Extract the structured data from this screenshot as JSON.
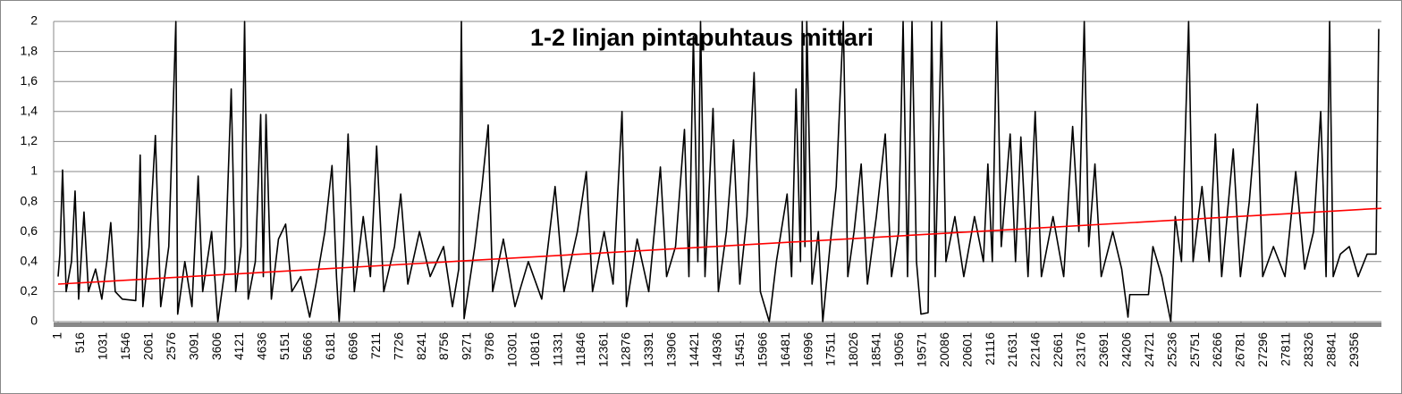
{
  "chart_data": {
    "type": "line",
    "title": "1-2 linjan pintapuhtaus mittari",
    "xlim": [
      -100,
      29960
    ],
    "ylim": [
      0,
      2
    ],
    "xticks": [
      1,
      516,
      1031,
      1546,
      2061,
      2576,
      3091,
      3606,
      4121,
      4636,
      5151,
      5666,
      6181,
      6696,
      7211,
      7726,
      8241,
      8756,
      9271,
      9786,
      10301,
      10816,
      11331,
      11846,
      12361,
      12876,
      13391,
      13906,
      14421,
      14936,
      15451,
      15966,
      16481,
      16996,
      17511,
      18026,
      18541,
      19056,
      19571,
      20086,
      20601,
      21116,
      21631,
      22146,
      22661,
      23176,
      23691,
      24206,
      24721,
      25236,
      25751,
      26266,
      26781,
      27296,
      27811,
      28326,
      28841,
      29356
    ],
    "yticks": [
      0,
      {
        "value": 0.2,
        "label": "0,2"
      },
      {
        "value": 0.4,
        "label": "0,4"
      },
      {
        "value": 0.6,
        "label": "0,6"
      },
      {
        "value": 0.8,
        "label": "0,8"
      },
      1,
      {
        "value": 1.2,
        "label": "1,2"
      },
      {
        "value": 1.4,
        "label": "1,4"
      },
      {
        "value": 1.6,
        "label": "1,6"
      },
      {
        "value": 1.8,
        "label": "1,8"
      },
      2
    ],
    "grid": true,
    "series": [
      {
        "color": "#000000",
        "x": [
          1,
          41,
          102,
          183,
          304,
          385,
          466,
          587,
          688,
          849,
          991,
          1112,
          1193,
          1294,
          1455,
          1758,
          1819,
          1859,
          1920,
          2061,
          2203,
          2324,
          2506,
          2667,
          2708,
          2870,
          3031,
          3172,
          3274,
          3476,
          3617,
          3778,
          3920,
          4021,
          4142,
          4223,
          4304,
          4466,
          4587,
          4647,
          4708,
          4829,
          4990,
          5152,
          5293,
          5495,
          5697,
          5839,
          6041,
          6202,
          6303,
          6364,
          6465,
          6566,
          6707,
          6909,
          7071,
          7212,
          7374,
          7616,
          7758,
          7919,
          8182,
          8424,
          8727,
          8929,
          9071,
          9131,
          9192,
          9435,
          9597,
          9738,
          9839,
          10081,
          10344,
          10646,
          10950,
          11252,
          11454,
          11757,
          11959,
          12100,
          12363,
          12565,
          12767,
          12868,
          13110,
          13373,
          13636,
          13777,
          13979,
          14181,
          14282,
          14383,
          14484,
          14545,
          14646,
          14828,
          14949,
          15131,
          15293,
          15434,
          15596,
          15758,
          15899,
          16101,
          16262,
          16505,
          16606,
          16707,
          16808,
          16848,
          16909,
          16950,
          17070,
          17212,
          17313,
          17475,
          17616,
          17778,
          17879,
          18021,
          18182,
          18323,
          18525,
          18727,
          18869,
          19030,
          19131,
          19232,
          19333,
          19434,
          19535,
          19697,
          19778,
          19858,
          20000,
          20101,
          20303,
          20505,
          20747,
          20949,
          21050,
          21151,
          21252,
          21353,
          21555,
          21676,
          21797,
          21959,
          22121,
          22262,
          22525,
          22767,
          22969,
          23111,
          23232,
          23333,
          23474,
          23616,
          23878,
          24080,
          24222,
          24262,
          24686,
          24787,
          24989,
          25191,
          25292,
          25433,
          25595,
          25696,
          25898,
          26060,
          26201,
          26343,
          26605,
          26767,
          26969,
          27151,
          27272,
          27515,
          27777,
          28020,
          28222,
          28424,
          28585,
          28707,
          28787,
          28868,
          29030,
          29232,
          29434,
          29636,
          29838,
          29899
        ],
        "values": [
          0.3,
          0.45,
          1.01,
          0.2,
          0.4,
          0.87,
          0.15,
          0.73,
          0.2,
          0.35,
          0.15,
          0.42,
          0.66,
          0.2,
          0.15,
          0.14,
          0.63,
          1.11,
          0.1,
          0.5,
          1.24,
          0.1,
          0.5,
          2,
          0.05,
          0.4,
          0.1,
          0.97,
          0.2,
          0.6,
          0,
          0.35,
          1.55,
          0.2,
          0.5,
          2,
          0.15,
          0.4,
          1.38,
          0.3,
          1.38,
          0.15,
          0.55,
          0.65,
          0.2,
          0.3,
          0.03,
          0.25,
          0.6,
          1.04,
          0.3,
          0,
          0.5,
          1.25,
          0.2,
          0.7,
          0.3,
          1.17,
          0.2,
          0.5,
          0.85,
          0.25,
          0.6,
          0.3,
          0.5,
          0.1,
          0.35,
          2,
          0.02,
          0.5,
          0.9,
          1.31,
          0.2,
          0.55,
          0.1,
          0.4,
          0.15,
          0.9,
          0.2,
          0.6,
          1,
          0.2,
          0.6,
          0.25,
          1.4,
          0.1,
          0.55,
          0.2,
          1.03,
          0.3,
          0.5,
          1.28,
          0.3,
          1.9,
          0.4,
          2,
          0.3,
          1.42,
          0.2,
          0.6,
          1.21,
          0.25,
          0.7,
          1.66,
          0.2,
          0,
          0.4,
          0.85,
          0.3,
          1.55,
          0.4,
          2,
          0.5,
          2,
          0.25,
          0.6,
          0,
          0.5,
          0.9,
          2,
          0.3,
          0.6,
          1.05,
          0.25,
          0.7,
          1.25,
          0.3,
          0.6,
          2,
          0.3,
          2,
          0.4,
          0.05,
          0.06,
          2,
          0.3,
          2,
          0.4,
          0.7,
          0.3,
          0.7,
          0.4,
          1.05,
          0.4,
          2,
          0.5,
          1.25,
          0.4,
          1.23,
          0.3,
          1.4,
          0.3,
          0.7,
          0.3,
          1.3,
          0.6,
          2,
          0.5,
          1.05,
          0.3,
          0.6,
          0.35,
          0.03,
          0.18,
          0.18,
          0.5,
          0.3,
          0,
          0.7,
          0.4,
          2,
          0.4,
          0.9,
          0.4,
          1.25,
          0.3,
          1.15,
          0.3,
          0.8,
          1.45,
          0.3,
          0.5,
          0.3,
          1,
          0.35,
          0.6,
          1.4,
          0.3,
          2,
          0.3,
          0.45,
          0.5,
          0.3,
          0.45,
          0.45,
          1.95
        ]
      },
      {
        "color": "#ff0000",
        "x": [
          1,
          29960
        ],
        "values": [
          0.25,
          0.755
        ]
      }
    ]
  }
}
